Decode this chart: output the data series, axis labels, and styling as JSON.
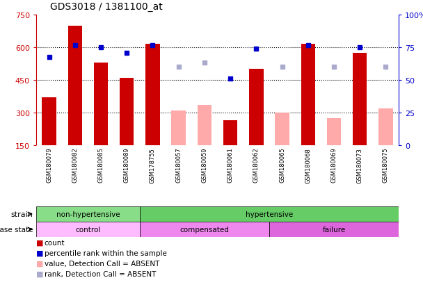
{
  "title": "GDS3018 / 1381100_at",
  "samples": [
    "GSM180079",
    "GSM180082",
    "GSM180085",
    "GSM180089",
    "GSM178755",
    "GSM180057",
    "GSM180059",
    "GSM180061",
    "GSM180062",
    "GSM180065",
    "GSM180068",
    "GSM180069",
    "GSM180073",
    "GSM180075"
  ],
  "count_values": [
    370,
    700,
    530,
    460,
    615,
    null,
    null,
    265,
    500,
    null,
    615,
    null,
    575,
    null
  ],
  "count_absent": [
    null,
    null,
    null,
    null,
    null,
    310,
    335,
    null,
    null,
    300,
    null,
    275,
    null,
    320
  ],
  "percentile_present": [
    555,
    610,
    600,
    575,
    610,
    null,
    null,
    455,
    595,
    null,
    610,
    null,
    600,
    null
  ],
  "percentile_absent": [
    null,
    null,
    null,
    null,
    null,
    510,
    530,
    null,
    null,
    510,
    null,
    510,
    null,
    510
  ],
  "ylim_left": [
    150,
    750
  ],
  "ylim_right": [
    0,
    100
  ],
  "yticks_left": [
    150,
    300,
    450,
    600,
    750
  ],
  "yticks_right": [
    0,
    25,
    50,
    75,
    100
  ],
  "grid_values": [
    300,
    450,
    600
  ],
  "bar_color_present": "#cc0000",
  "bar_color_absent": "#ffaaaa",
  "dot_color_present": "#0000cc",
  "dot_color_absent": "#aaaacc",
  "strain_groups": [
    {
      "label": "non-hypertensive",
      "start": 0,
      "end": 4,
      "color": "#88dd88"
    },
    {
      "label": "hypertensive",
      "start": 4,
      "end": 14,
      "color": "#66cc66"
    }
  ],
  "disease_groups": [
    {
      "label": "control",
      "start": 0,
      "end": 4,
      "color": "#ffaaff"
    },
    {
      "label": "compensated",
      "start": 4,
      "end": 9,
      "color": "#ee88ee"
    },
    {
      "label": "failure",
      "start": 9,
      "end": 14,
      "color": "#dd66dd"
    }
  ],
  "legend_items": [
    {
      "label": "count",
      "color": "#cc0000"
    },
    {
      "label": "percentile rank within the sample",
      "color": "#0000cc"
    },
    {
      "label": "value, Detection Call = ABSENT",
      "color": "#ffaaaa"
    },
    {
      "label": "rank, Detection Call = ABSENT",
      "color": "#aaaacc"
    }
  ],
  "background_color": "#ffffff",
  "tick_area_color": "#c8c8c8"
}
